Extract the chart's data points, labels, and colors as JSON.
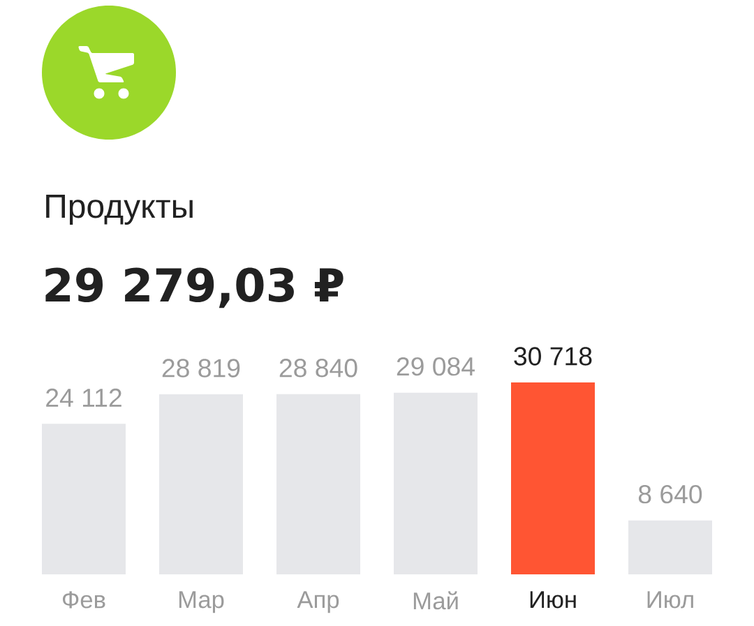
{
  "chart_data": {
    "type": "bar",
    "title": "Продукты",
    "subtitle": "29 279,03 ₽",
    "categories": [
      "Фев",
      "Мар",
      "Апр",
      "Май",
      "Июн",
      "Июл"
    ],
    "values": [
      24112,
      28819,
      28840,
      29084,
      30718,
      8640
    ],
    "colors": [
      "#e6e7ea",
      "#e6e7ea",
      "#e6e7ea",
      "#e6e7ea",
      "#ff5533",
      "#e6e7ea"
    ],
    "value_labels": [
      "24 112",
      "28 819",
      "28 840",
      "29 084",
      "30 718",
      "8 640"
    ]
  }
}
